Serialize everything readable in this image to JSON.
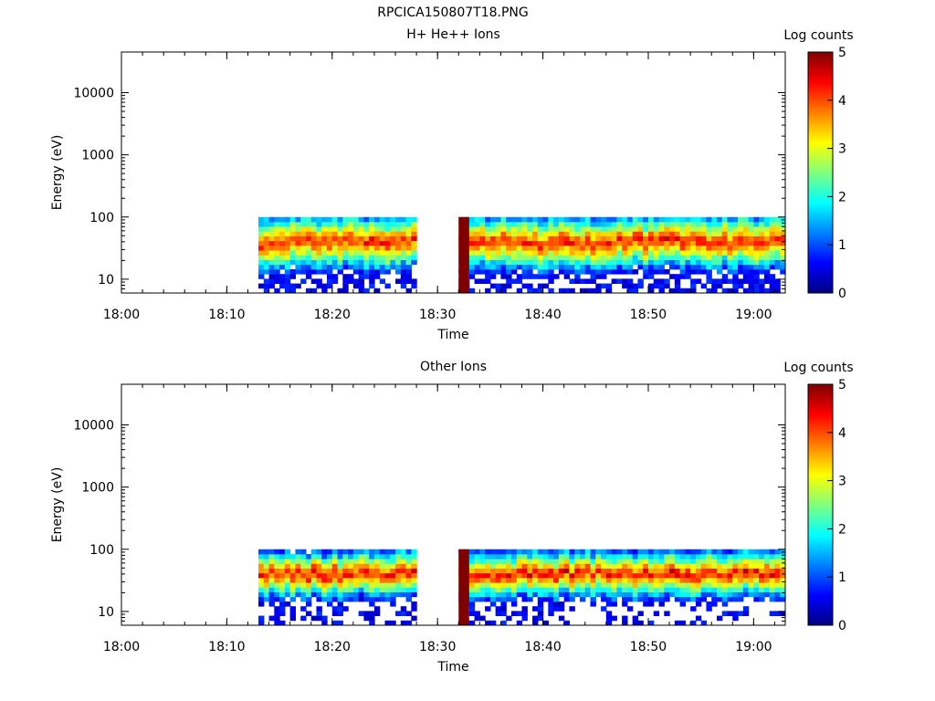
{
  "figure": {
    "title": "RPCICA150807T18.PNG"
  },
  "chart_data": [
    {
      "type": "heatmap",
      "title": "H+ He++ Ions",
      "xlabel": "Time",
      "ylabel": "Energy (eV)",
      "x_ticks": [
        "18:00",
        "18:10",
        "18:20",
        "18:30",
        "18:40",
        "18:50",
        "19:00"
      ],
      "y_ticks": [
        "10",
        "100",
        "1000",
        "10000"
      ],
      "y_scale": "log",
      "ylim": [
        6,
        45000
      ],
      "xlim": [
        "18:00",
        "19:03"
      ],
      "colorbar": {
        "label": "Log counts",
        "ticks": [
          "0",
          "1",
          "2",
          "3",
          "4",
          "5"
        ],
        "range": [
          0,
          5
        ]
      },
      "data_intervals": [
        [
          "18:13",
          "18:28"
        ],
        [
          "18:32",
          "19:03"
        ]
      ],
      "peak_energy_eV": 40,
      "peak_log_counts": 4.3,
      "energy_range_eV": [
        6,
        100
      ],
      "saturation_marker": {
        "time": "18:32",
        "energy_eV": [
          6,
          100
        ],
        "log_counts": 5
      }
    },
    {
      "type": "heatmap",
      "title": "Other Ions",
      "xlabel": "Time",
      "ylabel": "Energy (eV)",
      "x_ticks": [
        "18:00",
        "18:10",
        "18:20",
        "18:30",
        "18:40",
        "18:50",
        "19:00"
      ],
      "y_ticks": [
        "10",
        "100",
        "1000",
        "10000"
      ],
      "y_scale": "log",
      "ylim": [
        6,
        45000
      ],
      "xlim": [
        "18:00",
        "19:03"
      ],
      "colorbar": {
        "label": "Log counts",
        "ticks": [
          "0",
          "1",
          "2",
          "3",
          "4",
          "5"
        ],
        "range": [
          0,
          5
        ]
      },
      "data_intervals": [
        [
          "18:13",
          "18:28"
        ],
        [
          "18:32",
          "19:03"
        ]
      ],
      "peak_energy_eV": 40,
      "peak_log_counts": 4.4,
      "energy_range_eV": [
        6,
        100
      ],
      "saturation_marker": {
        "time": "18:32",
        "energy_eV": [
          6,
          100
        ],
        "log_counts": 5
      }
    }
  ]
}
